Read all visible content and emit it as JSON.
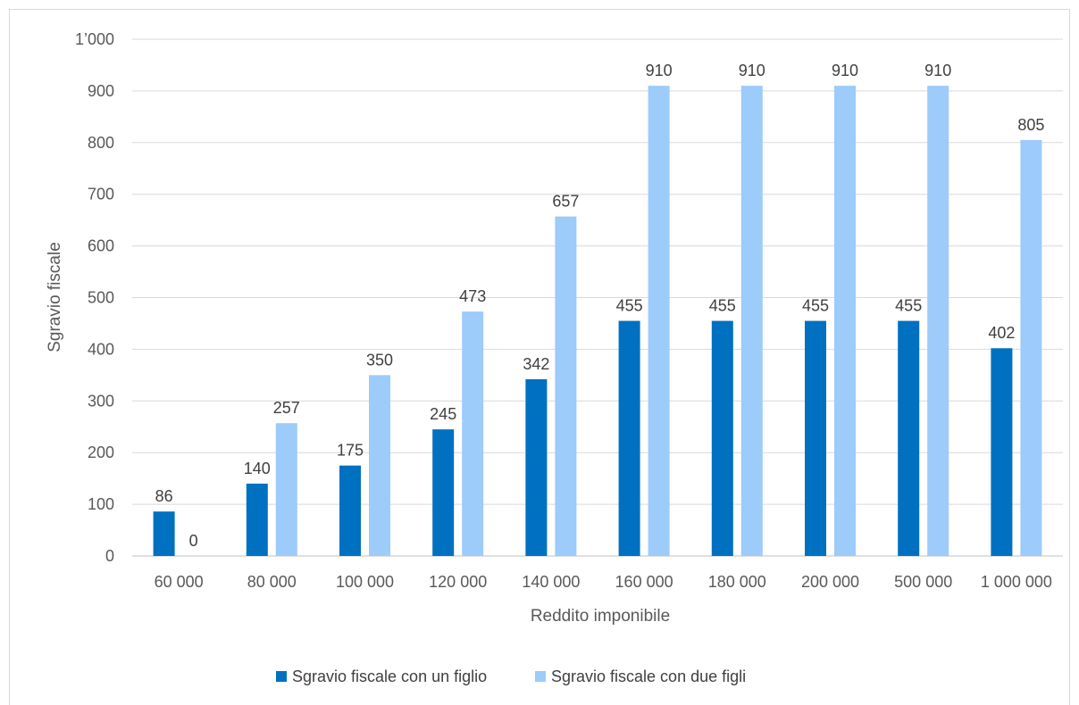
{
  "chart_data": {
    "type": "bar",
    "title": "",
    "xlabel": "Reddito imponibile",
    "ylabel": "Sgravio fiscale",
    "categories": [
      "60 000",
      "80 000",
      "100 000",
      "120 000",
      "140 000",
      "160 000",
      "180 000",
      "200 000",
      "500 000",
      "1 000 000"
    ],
    "series": [
      {
        "name": "Sgravio fiscale con un figlio",
        "color": "#0070c0",
        "values": [
          86,
          140,
          175,
          245,
          342,
          455,
          455,
          455,
          455,
          402
        ]
      },
      {
        "name": "Sgravio fiscale con due figli",
        "color": "#9dcbfa",
        "values": [
          0,
          257,
          350,
          473,
          657,
          910,
          910,
          910,
          910,
          805
        ]
      }
    ],
    "ylim": [
      0,
      1000
    ],
    "yticks": [
      0,
      100,
      200,
      300,
      400,
      500,
      600,
      700,
      800,
      900,
      1000
    ],
    "ytick_labels": [
      "0",
      "100",
      "200",
      "300",
      "400",
      "500",
      "600",
      "700",
      "800",
      "900",
      "1’000"
    ],
    "grid": true,
    "legend_position": "bottom"
  }
}
